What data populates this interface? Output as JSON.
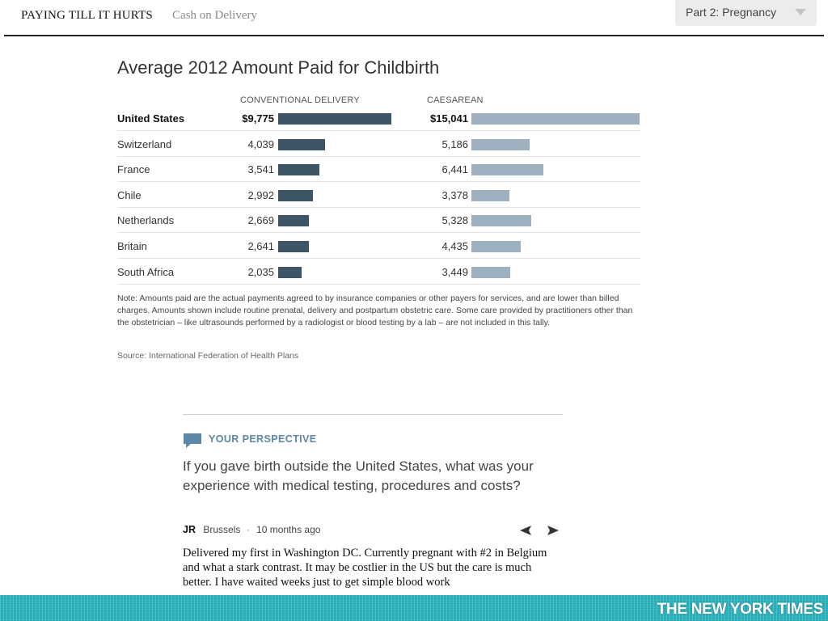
{
  "header": {
    "title": "PAYING TILL IT HURTS",
    "subtitle": "Cash on Delivery",
    "part_select": "Part 2: Pregnancy"
  },
  "chart_data": {
    "type": "bar",
    "title": "Average 2012 Amount Paid for Childbirth",
    "series": [
      {
        "name": "CONVENTIONAL DELIVERY",
        "color": "#3e5566",
        "values": [
          9775,
          4039,
          3541,
          2992,
          2669,
          2641,
          2035
        ],
        "labels": [
          "$9,775",
          "4,039",
          "3,541",
          "2,992",
          "2,669",
          "2,641",
          "2,035"
        ]
      },
      {
        "name": "CAESAREAN",
        "color": "#9fb1c1",
        "values": [
          15041,
          5186,
          6441,
          3378,
          5328,
          4435,
          3449
        ],
        "labels": [
          "$15,041",
          "5,186",
          "6,441",
          "3,378",
          "5,328",
          "4,435",
          "3,449"
        ]
      }
    ],
    "categories": [
      "United States",
      "Switzerland",
      "France",
      "Chile",
      "Netherlands",
      "Britain",
      "South Africa"
    ],
    "highlight_category": "United States"
  },
  "note": "Note: Amounts paid are the actual payments agreed to by insurance companies or other payers for services, and are lower than billed charges. Amounts shown include routine prenatal, delivery and postpartum obstetric care. Some care provided by practitioners other than the obstetrician – like ultrasounds performed by a radiologist or blood testing by a lab – are not included in this tally.",
  "source": "Source: International Federation of Health Plans",
  "perspective": {
    "heading": "YOUR PERSPECTIVE",
    "question": "If you gave birth outside the United States, what was your experience with medical testing, procedures and costs?",
    "comment": {
      "author": "JR",
      "location": "Brussels",
      "separator": "·",
      "time": "10 months ago",
      "body": "Delivered my first in Washington DC. Currently pregnant with #2 in Belgium and what a stark contrast. It may be costlier in the US but the care is much better. I have waited weeks just to get simple blood work"
    }
  },
  "footer": {
    "brand": "THE NEW YORK TIMES"
  },
  "icons": {
    "speech": "speech-bubble-icon",
    "prev": "arrow-left-icon",
    "next": "arrow-right-icon",
    "dropdown": "chevron-down-icon"
  },
  "colors": {
    "conventional_bar": "#3e5566",
    "caesarean_bar": "#9fb1c1",
    "accent": "#5d87a6",
    "footer": "#2db3bd"
  }
}
